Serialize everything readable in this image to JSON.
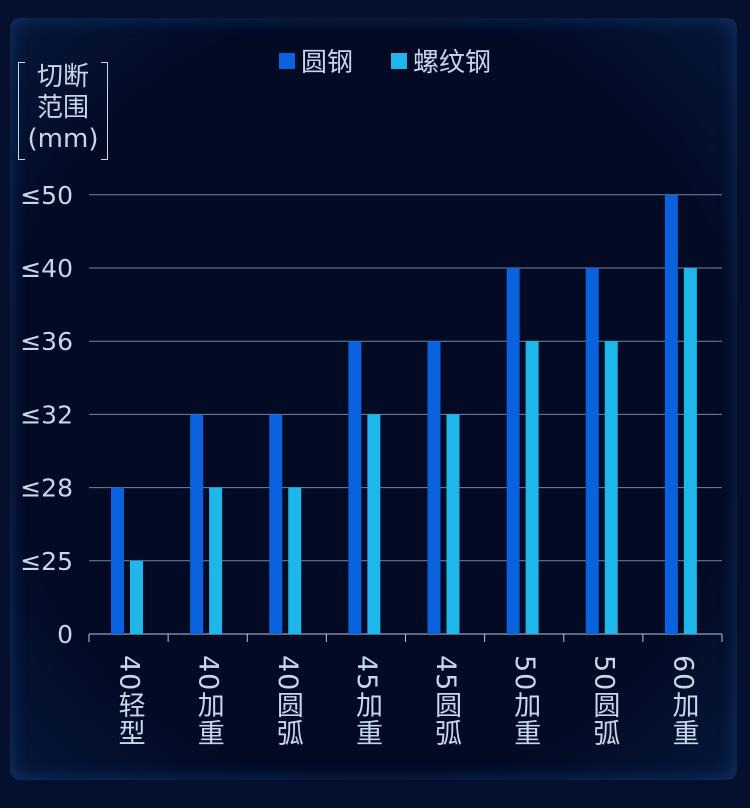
{
  "chart_data": {
    "type": "bar",
    "title": "",
    "ylabel": "切断范围(mm)",
    "ylabel_lines": [
      "切断",
      "范围",
      "(mm)"
    ],
    "xlabel": "",
    "categories": [
      "40轻型",
      "40加重",
      "40圆弧",
      "45加重",
      "45圆弧",
      "50加重",
      "50圆弧",
      "60加重"
    ],
    "y_ticks": [
      "0",
      "≤25",
      "≤28",
      "≤32",
      "≤36",
      "≤40",
      "≤50"
    ],
    "y_scale": "categorical (evenly spaced tick labels)",
    "series": [
      {
        "name": "圆钢",
        "color": "#0b62de",
        "values": [
          "≤28",
          "≤32",
          "≤32",
          "≤36",
          "≤36",
          "≤40",
          "≤40",
          "≤50"
        ]
      },
      {
        "name": "螺纹钢",
        "color": "#1fb6ea",
        "values": [
          "≤25",
          "≤28",
          "≤28",
          "≤32",
          "≤32",
          "≤36",
          "≤36",
          "≤40"
        ]
      }
    ],
    "grid": true,
    "legend_position": "top-center"
  }
}
